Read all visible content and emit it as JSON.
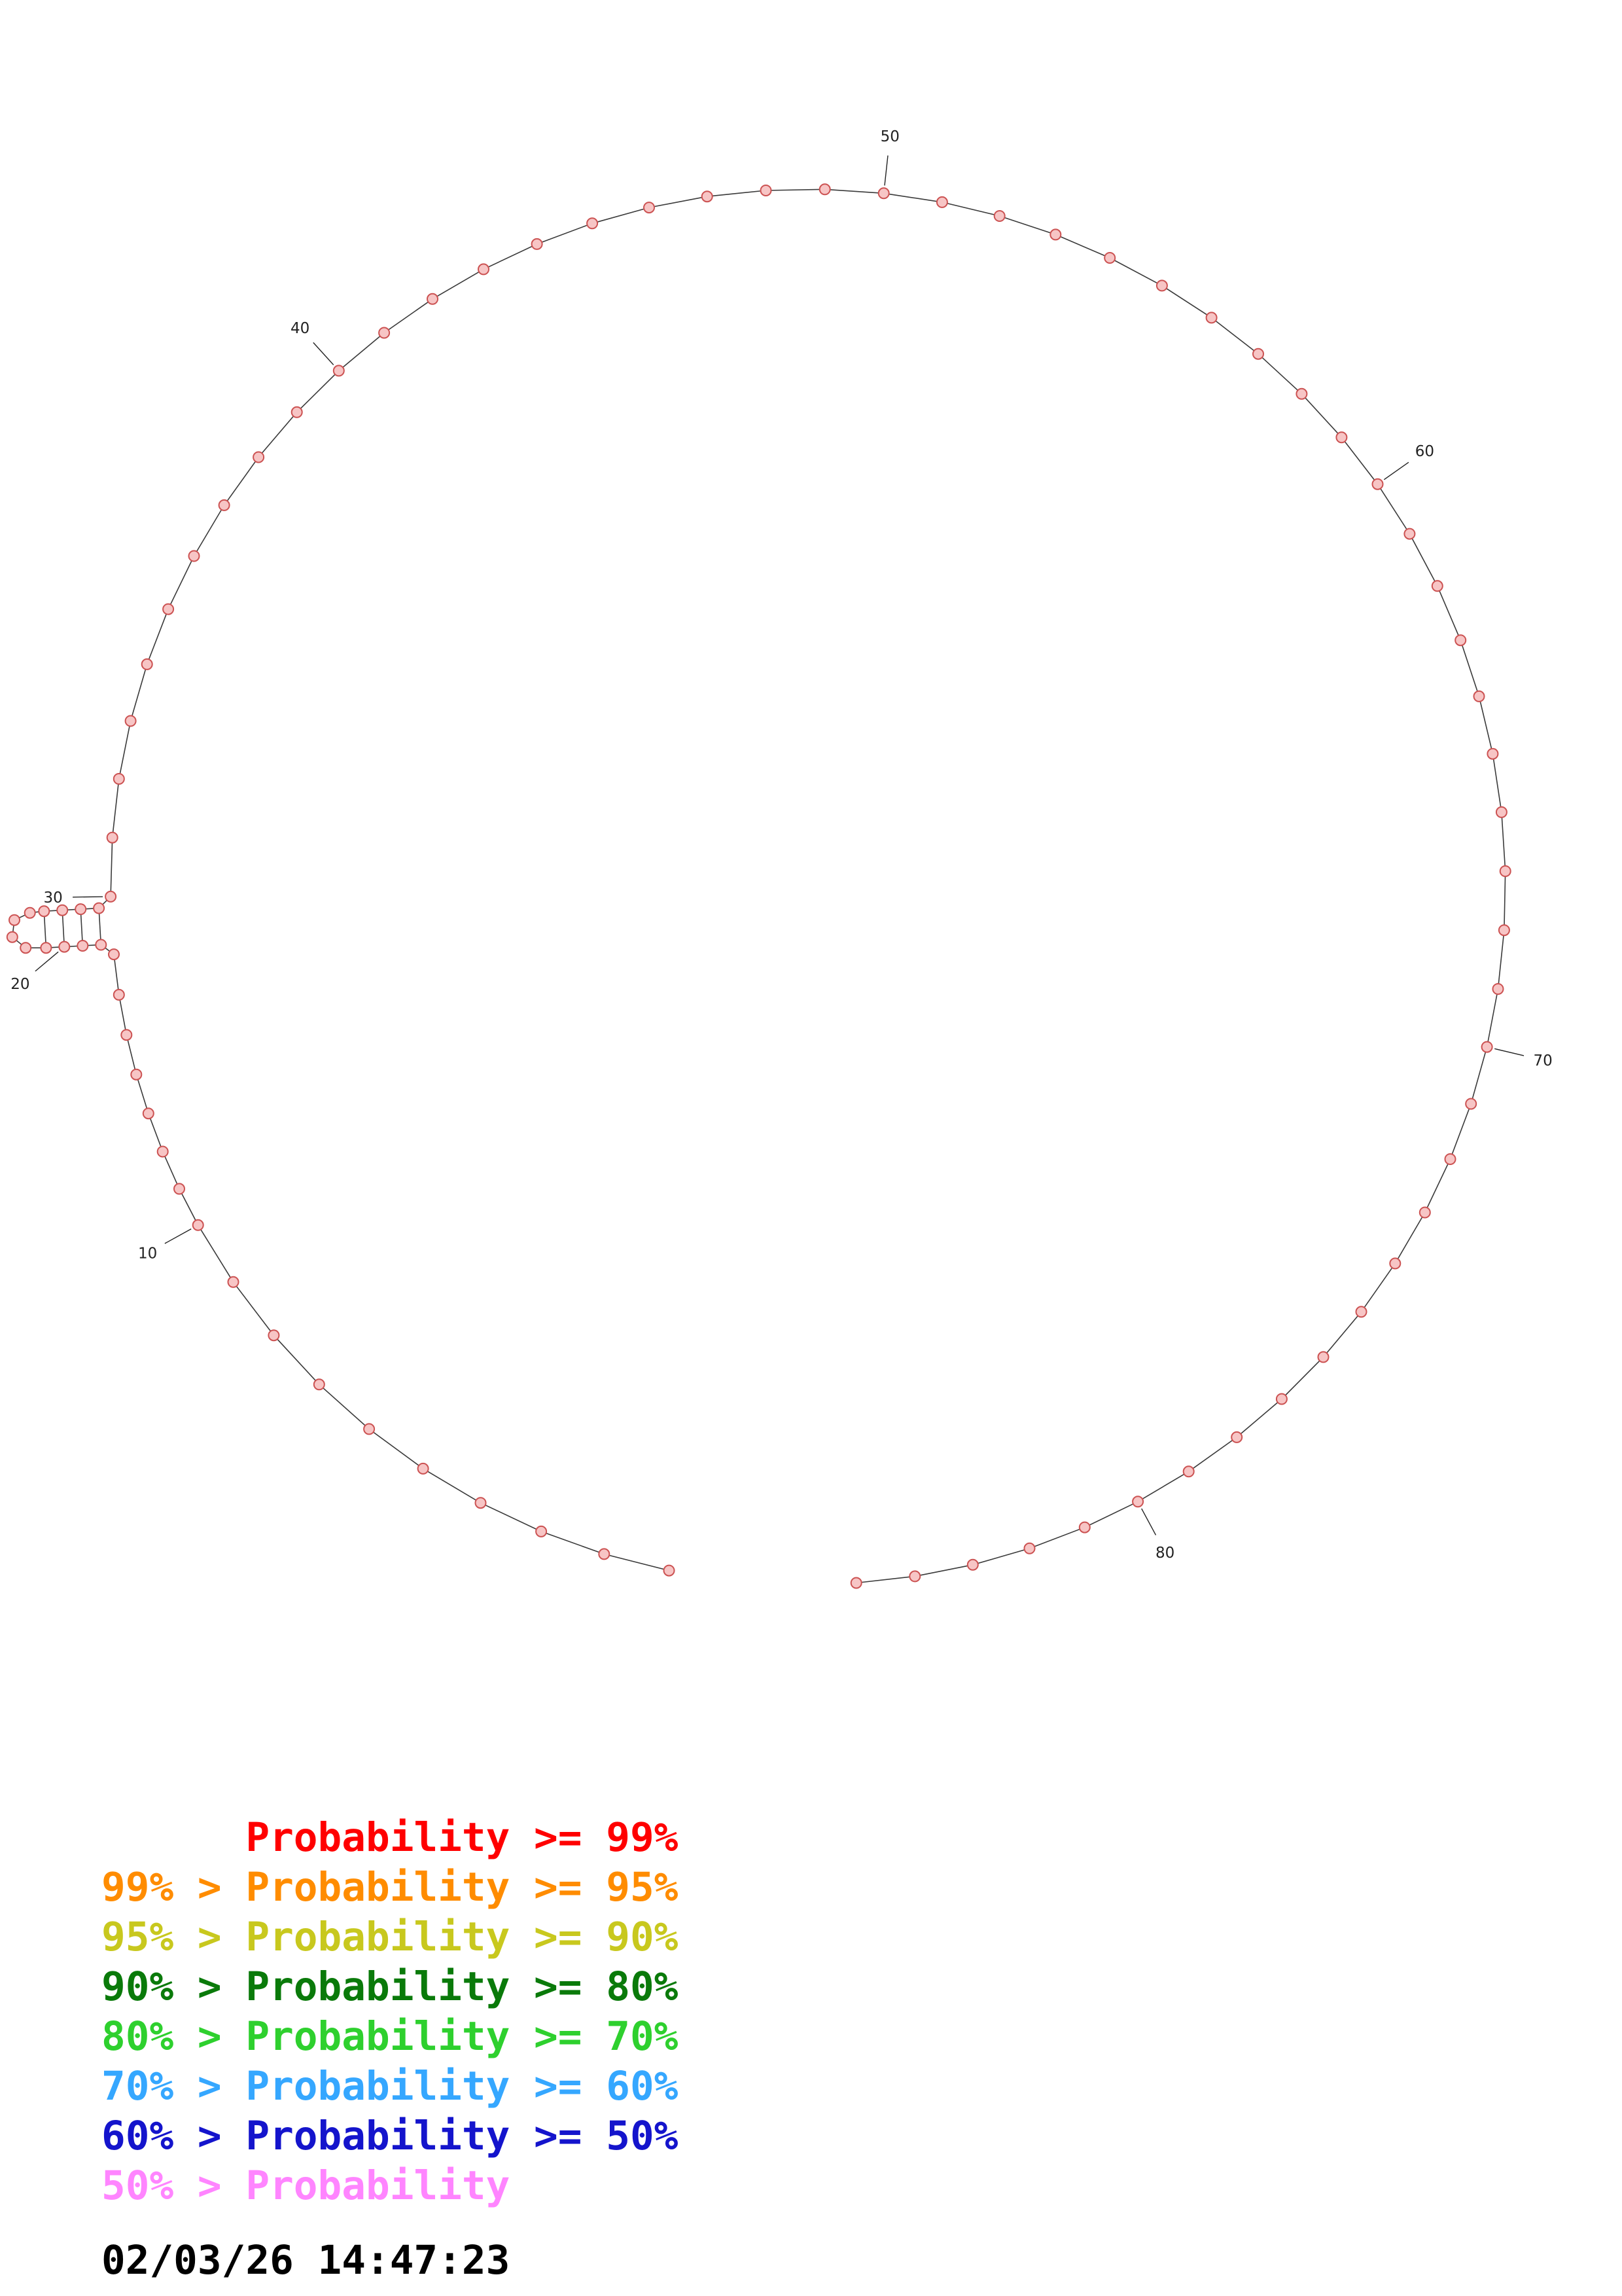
{
  "diagram": {
    "type": "rna-secondary-structure-plot",
    "sequence_length": 85,
    "ticks": [
      {
        "position": 10,
        "label": "10"
      },
      {
        "position": 20,
        "label": "20"
      },
      {
        "position": 30,
        "label": "30"
      },
      {
        "position": 40,
        "label": "40"
      },
      {
        "position": 50,
        "label": "50"
      },
      {
        "position": 60,
        "label": "60"
      },
      {
        "position": 70,
        "label": "70"
      },
      {
        "position": 80,
        "label": "80"
      }
    ],
    "hairpin": {
      "start": 18,
      "end": 29,
      "stem_pairs": 4,
      "loop_size": 4
    },
    "style": {
      "dot_fill": "#f7c5c5",
      "dot_stroke": "#cc5252",
      "backbone_color": "#3a3a3a",
      "tick_color": "#222222"
    }
  },
  "legend": {
    "items": [
      {
        "text": "      Probability >= 99%",
        "color": "#ff0000"
      },
      {
        "text": "99% > Probability >= 95%",
        "color": "#ff8c00"
      },
      {
        "text": "95% > Probability >= 90%",
        "color": "#c8c81e"
      },
      {
        "text": "90% > Probability >= 80%",
        "color": "#0a7a0a"
      },
      {
        "text": "80% > Probability >= 70%",
        "color": "#2ed02e"
      },
      {
        "text": "70% > Probability >= 60%",
        "color": "#35a7ff"
      },
      {
        "text": "60% > Probability >= 50%",
        "color": "#1414cc"
      },
      {
        "text": "50% > Probability",
        "color": "#ff85ff"
      }
    ],
    "timestamp": "02/03/26 14:47:23"
  }
}
